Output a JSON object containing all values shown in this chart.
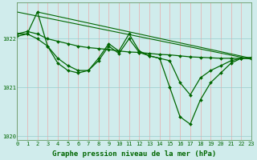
{
  "xlabel": "Graphe pression niveau de la mer (hPa)",
  "background_color": "#d0ecec",
  "plot_bg_color": "#d0ecec",
  "line_color": "#006600",
  "marker_color": "#006600",
  "series": [
    {
      "x": [
        0,
        1,
        2,
        3,
        4,
        5,
        6,
        7,
        8,
        9,
        10,
        11,
        12,
        13,
        14,
        15,
        16,
        17,
        18,
        19,
        20,
        21,
        22,
        23
      ],
      "y": [
        1022.1,
        1022.15,
        1022.1,
        1022.0,
        1021.95,
        1021.9,
        1021.85,
        1021.82,
        1021.8,
        1021.78,
        1021.75,
        1021.73,
        1021.72,
        1021.7,
        1021.68,
        1021.67,
        1021.65,
        1021.63,
        1021.62,
        1021.61,
        1021.6,
        1021.6,
        1021.6,
        1021.6
      ],
      "linewidth": 0.9,
      "marker": "D",
      "markersize": 2.0
    },
    {
      "x": [
        0,
        1,
        2,
        3,
        4,
        5,
        6,
        7,
        8,
        9,
        10,
        11,
        12,
        13,
        14,
        15,
        16,
        17,
        18,
        19,
        20,
        21,
        22,
        23
      ],
      "y": [
        1022.05,
        1022.1,
        1022.0,
        1021.85,
        1021.6,
        1021.45,
        1021.35,
        1021.35,
        1021.6,
        1021.9,
        1021.75,
        1022.1,
        1021.75,
        1021.65,
        1021.6,
        1021.55,
        1021.1,
        1020.85,
        1021.2,
        1021.35,
        1021.45,
        1021.55,
        1021.6,
        1021.6
      ],
      "linewidth": 0.9,
      "marker": "D",
      "markersize": 2.0
    },
    {
      "x": [
        0,
        1,
        2,
        3,
        4,
        5,
        6,
        7,
        8,
        9,
        10,
        11,
        12,
        13,
        14,
        15,
        16,
        17,
        18,
        19,
        20,
        21,
        22,
        23
      ],
      "y": [
        1022.1,
        1022.1,
        1022.55,
        1021.85,
        1021.5,
        1021.35,
        1021.3,
        1021.35,
        1021.55,
        1021.85,
        1021.7,
        1022.0,
        1021.72,
        1021.65,
        1021.6,
        1021.0,
        1020.4,
        1020.25,
        1020.75,
        1021.1,
        1021.3,
        1021.5,
        1021.6,
        1021.62
      ],
      "linewidth": 0.9,
      "marker": "D",
      "markersize": 2.0
    },
    {
      "x": [
        0,
        23
      ],
      "y": [
        1022.55,
        1021.58
      ],
      "linewidth": 0.8,
      "marker": null,
      "markersize": 0
    },
    {
      "x": [
        2,
        23
      ],
      "y": [
        1022.55,
        1021.6
      ],
      "linewidth": 0.8,
      "marker": null,
      "markersize": 0
    }
  ],
  "xlim": [
    0,
    23
  ],
  "ylim": [
    1019.92,
    1022.75
  ],
  "yticks": [
    1020,
    1021,
    1022
  ],
  "xticks": [
    0,
    1,
    2,
    3,
    4,
    5,
    6,
    7,
    8,
    9,
    10,
    11,
    12,
    13,
    14,
    15,
    16,
    17,
    18,
    19,
    20,
    21,
    22,
    23
  ],
  "tick_fontsize": 5.0,
  "xlabel_fontsize": 6.5,
  "tick_color": "#006600",
  "xlabel_color": "#006600",
  "xlabel_fontweight": "bold",
  "spine_color": "#669966"
}
